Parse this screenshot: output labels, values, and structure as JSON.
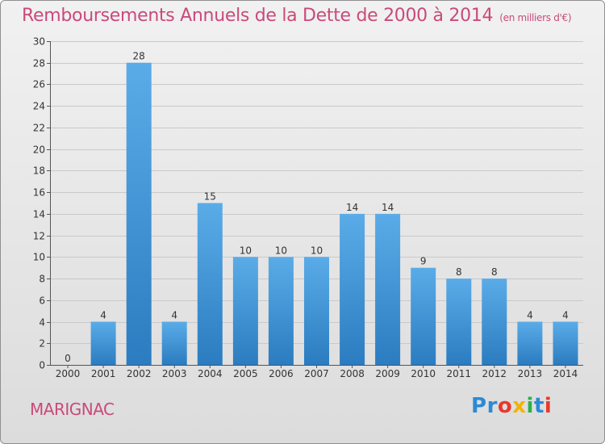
{
  "title": "Remboursements Annuels de la Dette de 2000 à 2014",
  "unit_label": "(en milliers d'€)",
  "place": "MARIGNAC",
  "logo": {
    "text": "Proxiti",
    "letters": [
      {
        "ch": "P",
        "color": "#2a8ad6"
      },
      {
        "ch": "r",
        "color": "#2a8ad6"
      },
      {
        "ch": "o",
        "color": "#e8392b"
      },
      {
        "ch": "x",
        "color": "#f3b300"
      },
      {
        "ch": "i",
        "color": "#2db04b"
      },
      {
        "ch": "t",
        "color": "#2a8ad6"
      },
      {
        "ch": "i",
        "color": "#e8392b"
      }
    ]
  },
  "colors": {
    "title": "#c94a7a",
    "bar_top": "#5aace8",
    "bar_bottom": "#2b7cc0",
    "grid": "#c9c9c9",
    "text": "#333333"
  },
  "chart_data": {
    "type": "bar",
    "categories": [
      "2000",
      "2001",
      "2002",
      "2003",
      "2004",
      "2005",
      "2006",
      "2007",
      "2008",
      "2009",
      "2010",
      "2011",
      "2012",
      "2013",
      "2014"
    ],
    "values": [
      0,
      4,
      28,
      4,
      15,
      10,
      10,
      10,
      14,
      14,
      9,
      8,
      8,
      4,
      4
    ],
    "ylim": [
      0,
      30
    ],
    "yticks": [
      0,
      2,
      4,
      6,
      8,
      10,
      12,
      14,
      16,
      18,
      20,
      22,
      24,
      26,
      28,
      30
    ],
    "grid": true,
    "data_labels": true
  }
}
